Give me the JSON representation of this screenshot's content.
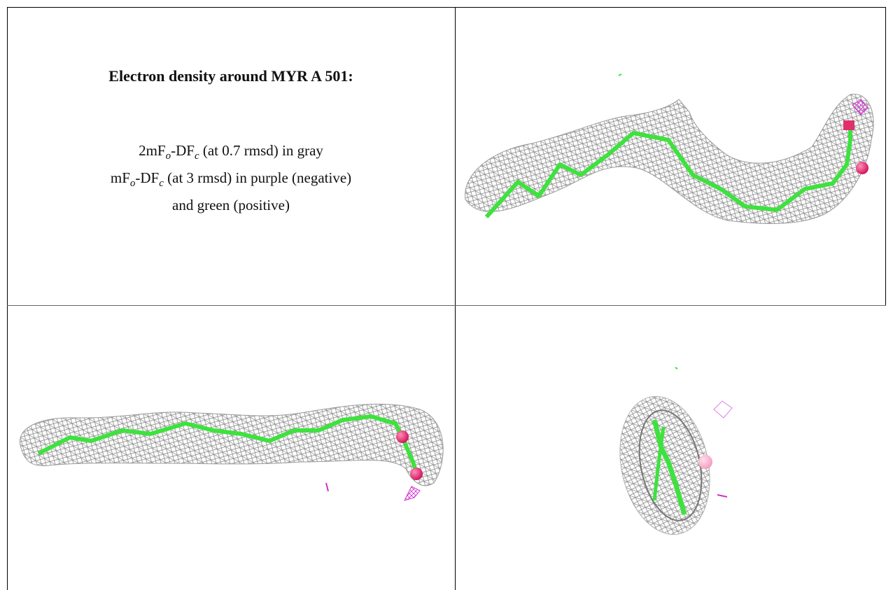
{
  "title": "Electron density around MYR A 501:",
  "legend": {
    "lines": [
      [
        "2mF",
        "o",
        "-DF",
        "c",
        " (at 0.7 rmsd) in gray"
      ],
      [
        "mF",
        "o",
        "-DF",
        "c",
        " (at 3 rmsd) in purple (negative)"
      ],
      [
        "and green (positive)"
      ]
    ]
  }
}
